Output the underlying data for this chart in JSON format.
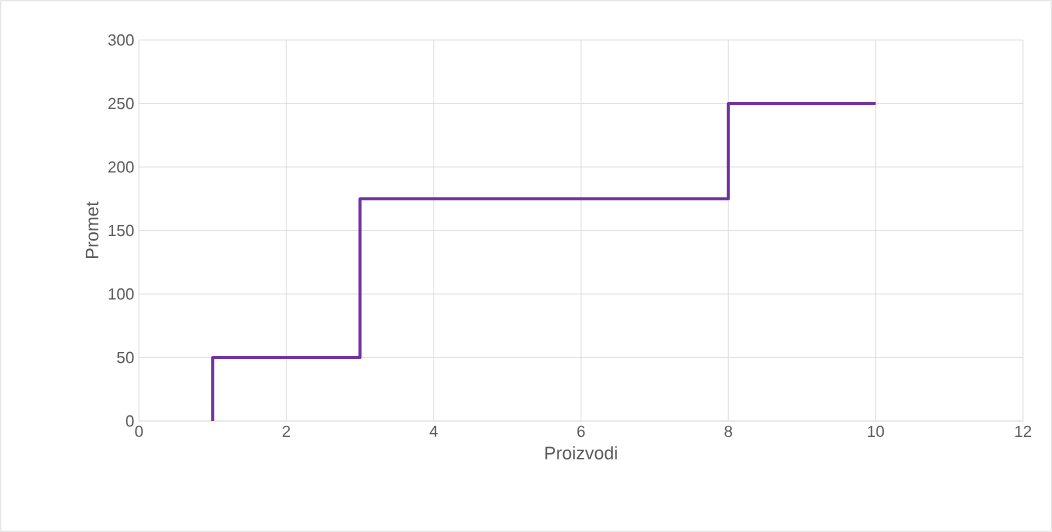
{
  "chart_data": {
    "type": "line",
    "xlabel": "Proizvodi",
    "ylabel": "Promet",
    "x": [
      1,
      1,
      3,
      3,
      8,
      8,
      10
    ],
    "series": [
      {
        "color": "#7030a0",
        "values": [
          0,
          50,
          50,
          175,
          175,
          250,
          250
        ]
      }
    ],
    "xlim": [
      0,
      12
    ],
    "xticks": [
      0,
      2,
      4,
      6,
      8,
      10,
      12
    ],
    "ylim": [
      0,
      300
    ],
    "yticks": [
      0,
      50,
      100,
      150,
      200,
      250,
      300
    ],
    "grid": true,
    "marker": "none",
    "line_style": "solid"
  }
}
